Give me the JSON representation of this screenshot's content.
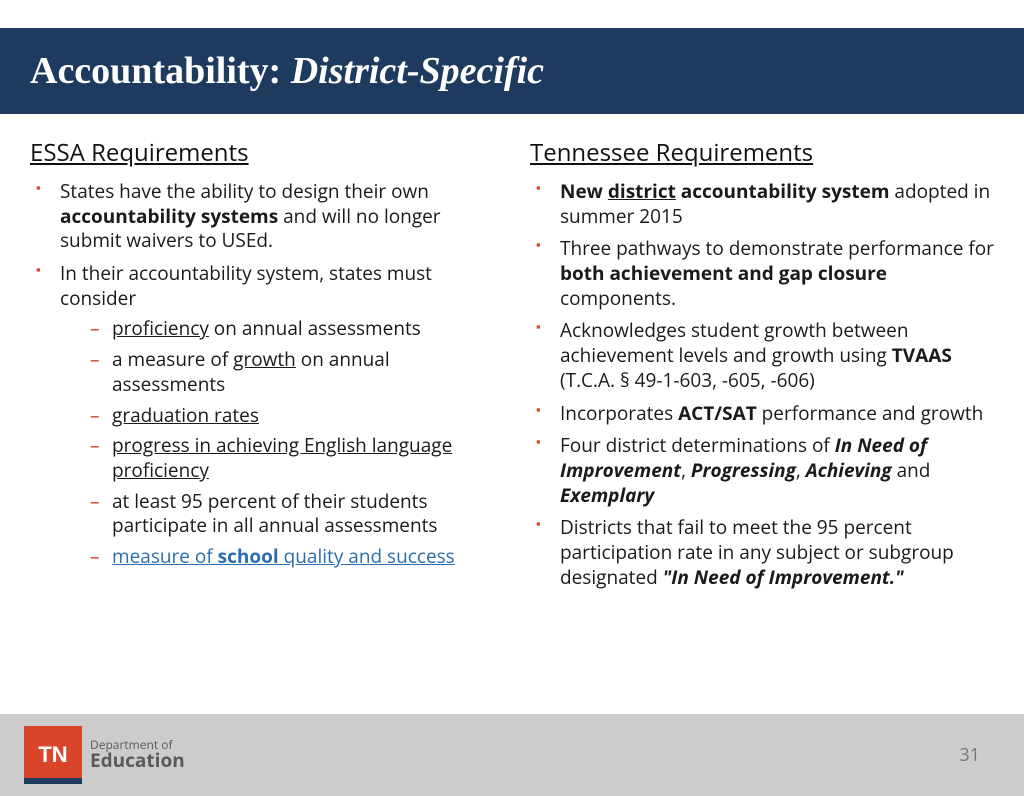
{
  "header": {
    "title_plain": "Accountability: ",
    "title_italic": "District-Specific",
    "bg_color": "#1f3a5f",
    "text_color": "#ffffff"
  },
  "left": {
    "heading": "ESSA Requirements",
    "item1_pre": "States have the ability to design their own ",
    "item1_bold": "accountability systems",
    "item1_post": " and will no longer submit waivers to USEd.",
    "item2": "In their accountability system, states must consider",
    "sub1_u": "proficiency",
    "sub1_post": " on annual assessments",
    "sub2_pre": "a measure of ",
    "sub2_u": "growth",
    "sub2_post": " on annual assessments",
    "sub3": "graduation rates",
    "sub4": "progress in achieving English language proficiency",
    "sub5": "at least 95 percent of their students participate in all annual assessments",
    "sub6_a": "measure of ",
    "sub6_b": "school",
    "sub6_c": " quality and success"
  },
  "right": {
    "heading": "Tennessee Requirements",
    "i1_a": "New ",
    "i1_b": "district",
    "i1_c": " accountability system",
    "i1_d": " adopted in summer 2015",
    "i2_a": "Three pathways to demonstrate performance for ",
    "i2_b": "both achievement and gap closure",
    "i2_c": " components.",
    "i3_a": "Acknowledges student growth between achievement levels and growth using ",
    "i3_b": "TVAAS",
    "i3_c": " (T.C.A. § 49-1-603, -605, -606)",
    "i4_a": "Incorporates ",
    "i4_b": "ACT/SAT",
    "i4_c": " performance and growth",
    "i5_a": "Four district determinations of ",
    "i5_b": "In Need of Improvement",
    "i5_s1": ", ",
    "i5_c": "Progressing",
    "i5_s2": ", ",
    "i5_d": "Achieving",
    "i5_s3": " and ",
    "i5_e": "Exemplary",
    "i6_a": "Districts that fail to meet the 95 percent participation rate in any subject or subgroup designated ",
    "i6_b": "\"In Need of Improvement.\""
  },
  "footer": {
    "tn": "TN",
    "dept": "Department of",
    "edu": "Education",
    "page": "31"
  },
  "colors": {
    "bullet": "#d9452b",
    "link": "#2b6cb0",
    "footer_bg": "#cccccc"
  }
}
